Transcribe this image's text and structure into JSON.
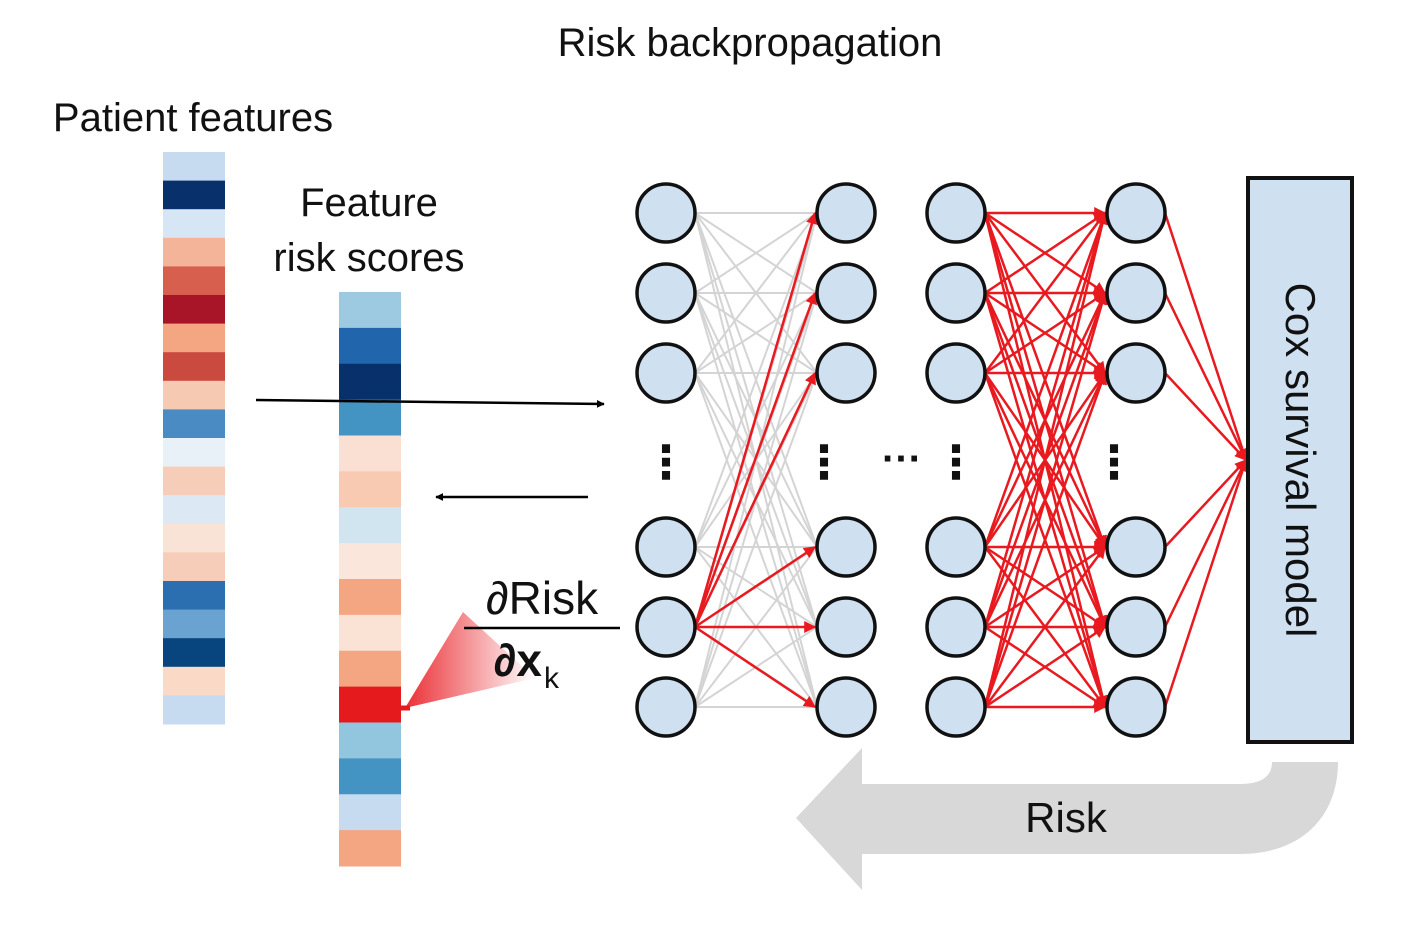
{
  "title": "Risk backpropagation",
  "patient_features_label": "Patient features",
  "feature_risk_scores_label_line1": "Feature",
  "feature_risk_scores_label_line2": "risk scores",
  "gradient_numerator": "∂Risk",
  "gradient_denominator": "∂x",
  "gradient_subscript": "k",
  "ellipsis_vertical": "⋮",
  "ellipsis_horizontal": "···",
  "cox_model_label": "Cox survival model",
  "risk_arrow_label": "Risk",
  "colors": {
    "node_fill": "#cfe0f1",
    "node_stroke": "#111111",
    "active_edge": "#e8191f",
    "inactive_edge": "#d4d4d4",
    "risk_arrow": "#d8d8d8",
    "cox_box_fill": "#cfe0f1"
  },
  "patient_feature_bands": [
    "#c6dbef",
    "#08306b",
    "#d6e6f4",
    "#f4b49a",
    "#d6604d",
    "#a81529",
    "#f4a582",
    "#cb4a40",
    "#f6c9b2",
    "#4a8bc4",
    "#e9f1f8",
    "#f6cdb9",
    "#dce9f4",
    "#f9e2d6",
    "#f6cdb9",
    "#2b6fb0",
    "#6aa2d2",
    "#08457e",
    "#fbd9c7",
    "#c6dbef"
  ],
  "risk_score_bands": [
    "#9ecae1",
    "#2166ac",
    "#08306b",
    "#4393c3",
    "#f9e0d2",
    "#f7cab1",
    "#d1e5f0",
    "#fbe6dc",
    "#f4a582",
    "#fae2d4",
    "#f4a582",
    "#e41a1c",
    "#92c5de",
    "#4393c3",
    "#c6dbef",
    "#f4a582"
  ],
  "network_layer_sizes": [
    6,
    6,
    6,
    6
  ]
}
